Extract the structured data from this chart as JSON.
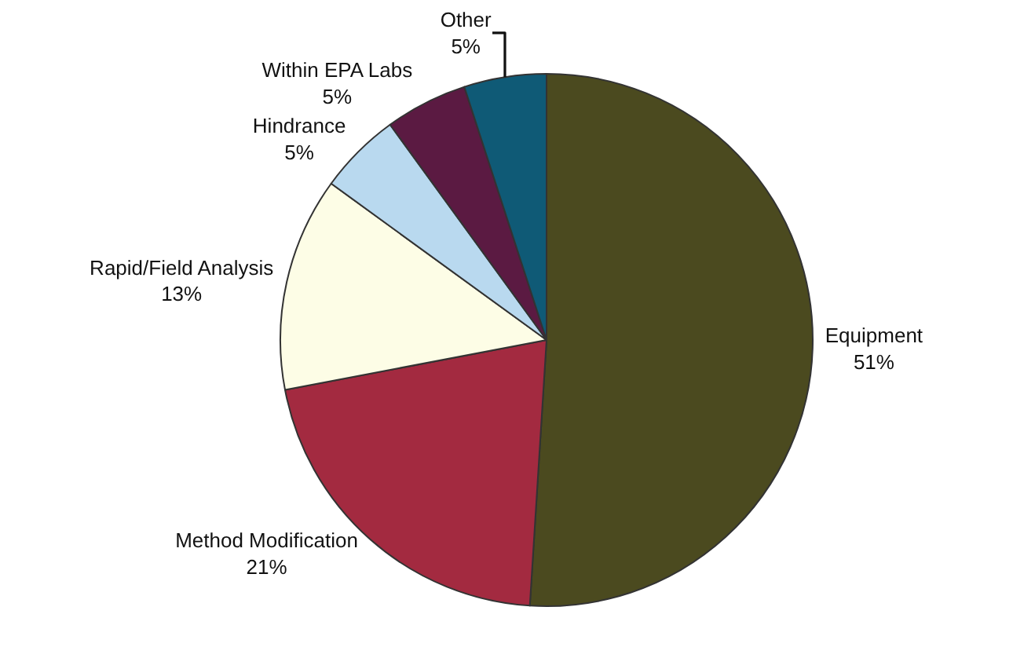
{
  "chart_data": {
    "type": "pie",
    "categories": [
      "Equipment",
      "Method Modification",
      "Rapid/Field Analysis",
      "Hindrance",
      "Within EPA Labs",
      "Other"
    ],
    "values": [
      51,
      21,
      13,
      5,
      5,
      5
    ],
    "value_labels": [
      "51%",
      "21%",
      "13%",
      "5%",
      "5%",
      "5%"
    ],
    "colors": [
      "#4b4a1f",
      "#a32a40",
      "#fdfde6",
      "#b9d9ef",
      "#5b1a42",
      "#0f5a76"
    ],
    "legend": false
  }
}
